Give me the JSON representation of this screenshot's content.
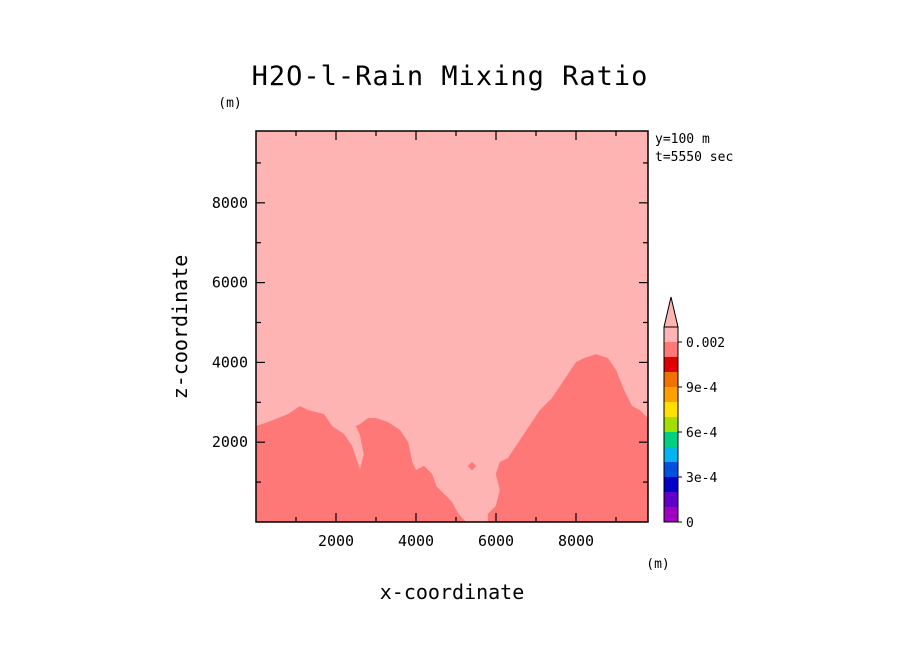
{
  "chart_data": {
    "type": "heatmap",
    "title": "H2O-l-Rain Mixing Ratio",
    "xlabel": "x-coordinate",
    "ylabel": "z-coordinate",
    "x_unit": "(m)",
    "y_unit": "(m)",
    "xlim": [
      0,
      9800
    ],
    "ylim": [
      0,
      9800
    ],
    "x_ticks": [
      2000,
      4000,
      6000,
      8000
    ],
    "y_ticks": [
      2000,
      4000,
      6000,
      8000
    ],
    "annotations": [
      "y=100 m",
      "t=5550 sec"
    ],
    "grid": false,
    "colorbar": {
      "placement": "right",
      "extend": "max",
      "levels": [
        0,
        0.0001,
        0.0002,
        0.0003,
        0.0004,
        0.0005,
        0.0006,
        0.0007,
        0.0008,
        0.0009,
        0.001,
        0.0015,
        0.002
      ],
      "colors": [
        "#a000c0",
        "#6000c8",
        "#0000c8",
        "#0050e0",
        "#00b4f0",
        "#00d080",
        "#a0e000",
        "#ffe000",
        "#ffa000",
        "#f07000",
        "#e00000",
        "#ff7878",
        "#ffb4b4"
      ],
      "tick_labels": [
        {
          "value": 0,
          "label": "0"
        },
        {
          "value": 0.0003,
          "label": "3e-4"
        },
        {
          "value": 0.0006,
          "label": "6e-4"
        },
        {
          "value": 0.0009,
          "label": "9e-4"
        },
        {
          "value": 0.002,
          "label": "0.002"
        }
      ]
    },
    "regions": [
      {
        "name": "above 0.002",
        "color": "#ffb4b4",
        "polygon": [
          [
            0,
            0
          ],
          [
            9800,
            0
          ],
          [
            9800,
            9800
          ],
          [
            0,
            9800
          ]
        ]
      },
      {
        "name": "0.0015-0.002",
        "color": "#ff7878",
        "polygon": [
          [
            0,
            0
          ],
          [
            0,
            2400
          ],
          [
            300,
            2500
          ],
          [
            800,
            2700
          ],
          [
            1100,
            2900
          ],
          [
            1300,
            2800
          ],
          [
            1700,
            2700
          ],
          [
            1900,
            2400
          ],
          [
            2200,
            2200
          ],
          [
            2400,
            1900
          ],
          [
            2500,
            1600
          ],
          [
            2600,
            1300
          ],
          [
            2700,
            1700
          ],
          [
            2600,
            2200
          ],
          [
            2500,
            2400
          ],
          [
            2600,
            2450
          ],
          [
            2800,
            2600
          ],
          [
            3000,
            2600
          ],
          [
            3300,
            2500
          ],
          [
            3600,
            2300
          ],
          [
            3800,
            2000
          ],
          [
            3900,
            1500
          ],
          [
            4000,
            1300
          ],
          [
            4200,
            1400
          ],
          [
            4400,
            1200
          ],
          [
            4500,
            900
          ],
          [
            4700,
            700
          ],
          [
            4900,
            500
          ],
          [
            5000,
            300
          ],
          [
            5100,
            150
          ],
          [
            5250,
            0
          ]
        ]
      },
      {
        "name": "0.0015-0.002",
        "color": "#ff7878",
        "polygon": [
          [
            5800,
            0
          ],
          [
            5800,
            200
          ],
          [
            6000,
            400
          ],
          [
            6100,
            800
          ],
          [
            6000,
            1200
          ],
          [
            6100,
            1500
          ],
          [
            6300,
            1600
          ],
          [
            6500,
            1900
          ],
          [
            6700,
            2200
          ],
          [
            6900,
            2500
          ],
          [
            7100,
            2800
          ],
          [
            7400,
            3100
          ],
          [
            7600,
            3400
          ],
          [
            7800,
            3700
          ],
          [
            8000,
            4000
          ],
          [
            8200,
            4100
          ],
          [
            8500,
            4200
          ],
          [
            8800,
            4100
          ],
          [
            9000,
            3800
          ],
          [
            9200,
            3300
          ],
          [
            9400,
            2900
          ],
          [
            9600,
            2800
          ],
          [
            9800,
            2600
          ],
          [
            9800,
            0
          ]
        ]
      },
      {
        "name": "0.0015-0.002",
        "color": "#ff7878",
        "polygon": [
          [
            5300,
            1400
          ],
          [
            5400,
            1500
          ],
          [
            5500,
            1400
          ],
          [
            5400,
            1300
          ]
        ]
      }
    ]
  }
}
